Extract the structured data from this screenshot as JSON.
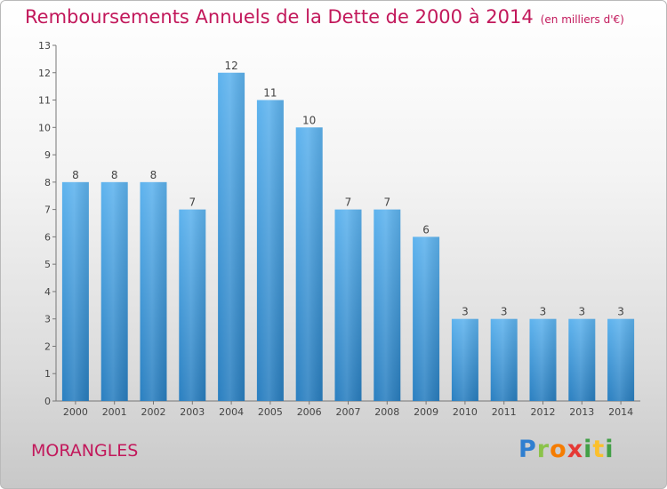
{
  "header": {
    "title": "Remboursements Annuels de la Dette de 2000 à 2014",
    "unit": "(en milliers d'€)"
  },
  "footer": {
    "commune": "MORANGLES",
    "logo_text": "Proxiti"
  },
  "colors": {
    "title": "#c2185b",
    "bar_light": "#5eb3ee",
    "bar_dark": "#2a7fc0"
  },
  "chart_data": {
    "type": "bar",
    "title": "Remboursements Annuels de la Dette de 2000 à 2014",
    "subtitle": "(en milliers d'€)",
    "xlabel": "",
    "ylabel": "",
    "categories": [
      "2000",
      "2001",
      "2002",
      "2003",
      "2004",
      "2005",
      "2006",
      "2007",
      "2008",
      "2009",
      "2010",
      "2011",
      "2012",
      "2013",
      "2014"
    ],
    "values": [
      8,
      8,
      8,
      7,
      12,
      11,
      10,
      7,
      7,
      6,
      3,
      3,
      3,
      3,
      3
    ],
    "ylim": [
      0,
      13
    ],
    "yticks": [
      0,
      1,
      2,
      3,
      4,
      5,
      6,
      7,
      8,
      9,
      10,
      11,
      12,
      13
    ],
    "grid": false,
    "legend": "none"
  }
}
